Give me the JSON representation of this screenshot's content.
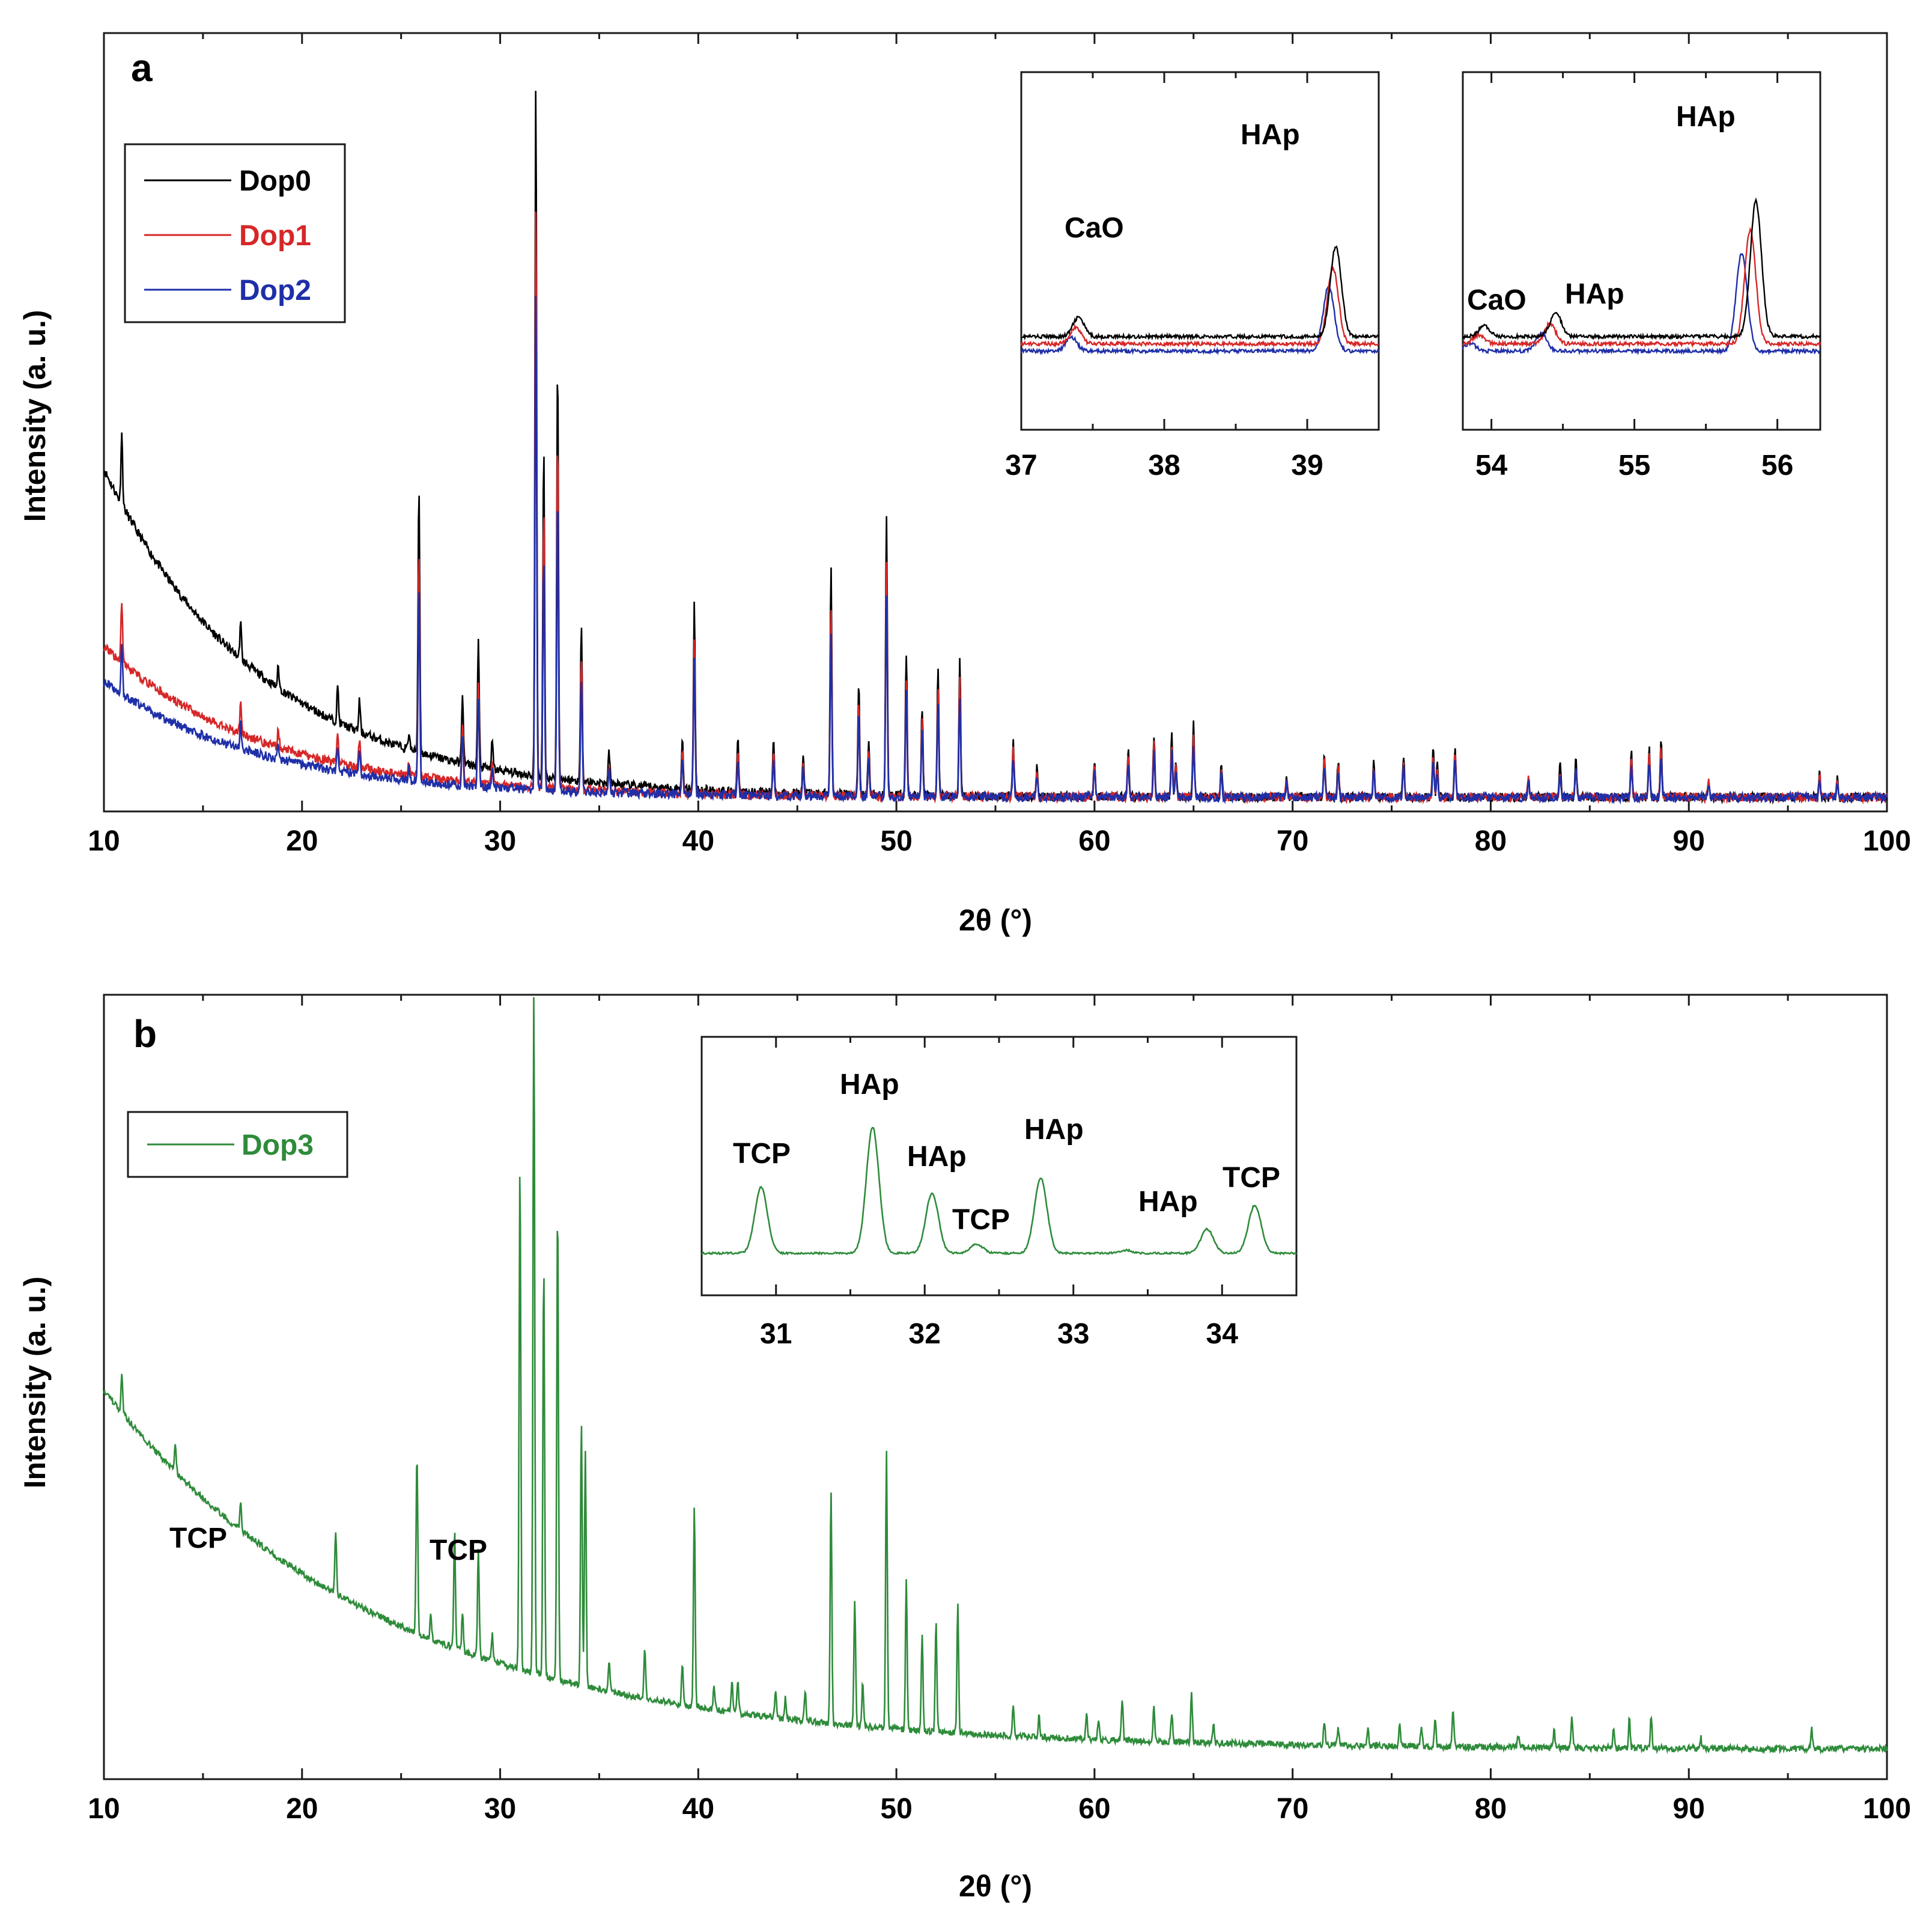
{
  "chart_data": [
    {
      "panel": "a",
      "type": "line",
      "xlabel": "2θ (°)",
      "ylabel": "Intensity (a. u.)",
      "xlim": [
        10,
        100
      ],
      "xticks": [
        "10",
        "20",
        "30",
        "40",
        "50",
        "60",
        "70",
        "80",
        "90",
        "100"
      ],
      "grid": false,
      "legend_position": "top-left",
      "series": [
        {
          "name": "Dop0",
          "color": "#000000",
          "base": [
            185,
            0
          ],
          "scale": 1.0
        },
        {
          "name": "Dop1",
          "color": "#d62728",
          "base": [
            85,
            0
          ],
          "scale": 0.84
        },
        {
          "name": "Dop2",
          "color": "#1f2fa8",
          "base": [
            65,
            0
          ],
          "scale": 0.72
        }
      ],
      "peaks": [
        [
          10.9,
          40
        ],
        [
          16.9,
          20
        ],
        [
          18.8,
          12
        ],
        [
          21.8,
          20
        ],
        [
          22.9,
          18
        ],
        [
          25.4,
          10
        ],
        [
          25.9,
          150
        ],
        [
          28.1,
          40
        ],
        [
          28.9,
          70
        ],
        [
          29.6,
          15
        ],
        [
          31.8,
          390
        ],
        [
          32.2,
          185
        ],
        [
          32.9,
          235
        ],
        [
          34.1,
          90
        ],
        [
          35.5,
          18
        ],
        [
          39.2,
          28
        ],
        [
          39.8,
          105
        ],
        [
          42.0,
          28
        ],
        [
          43.8,
          30
        ],
        [
          45.3,
          20
        ],
        [
          46.7,
          128
        ],
        [
          48.1,
          63
        ],
        [
          48.6,
          30
        ],
        [
          49.5,
          158
        ],
        [
          50.5,
          80
        ],
        [
          51.3,
          50
        ],
        [
          52.1,
          70
        ],
        [
          53.2,
          78
        ],
        [
          55.9,
          32
        ],
        [
          57.1,
          18
        ],
        [
          60.0,
          22
        ],
        [
          61.7,
          27
        ],
        [
          63.0,
          35
        ],
        [
          63.9,
          35
        ],
        [
          64.1,
          20
        ],
        [
          65.0,
          42
        ],
        [
          66.4,
          18
        ],
        [
          69.7,
          12
        ],
        [
          71.6,
          25
        ],
        [
          72.3,
          20
        ],
        [
          74.1,
          20
        ],
        [
          75.6,
          23
        ],
        [
          77.1,
          28
        ],
        [
          77.3,
          20
        ],
        [
          78.2,
          30
        ],
        [
          81.9,
          12
        ],
        [
          83.5,
          18
        ],
        [
          84.3,
          22
        ],
        [
          87.1,
          25
        ],
        [
          88.0,
          28
        ],
        [
          88.6,
          33
        ],
        [
          91.0,
          10
        ],
        [
          96.6,
          15
        ],
        [
          97.5,
          12
        ]
      ],
      "insets": [
        {
          "xlim": [
            37,
            39.5
          ],
          "xticks": [
            "37",
            "38",
            "39"
          ],
          "annotations": [
            {
              "text": "CaO",
              "x": 37.4
            },
            {
              "text": "HAp",
              "x": 39.0
            }
          ],
          "peaks": [
            [
              37.4,
              32
            ],
            [
              39.2,
              150
            ]
          ],
          "shift": [
            0,
            -0.02,
            -0.05
          ]
        },
        {
          "xlim": [
            53.8,
            56.3
          ],
          "xticks": [
            "54",
            "55",
            "56"
          ],
          "annotations": [
            {
              "text": "CaO",
              "x": 54.0
            },
            {
              "text": "HAp",
              "x": 54.7
            },
            {
              "text": "HAp",
              "x": 55.6
            }
          ],
          "peaks": [
            [
              53.95,
              18
            ],
            [
              54.45,
              40
            ],
            [
              55.85,
              225
            ]
          ],
          "shift": [
            0,
            -0.04,
            -0.1
          ]
        }
      ]
    },
    {
      "panel": "b",
      "type": "line",
      "xlabel": "2θ (°)",
      "ylabel": "Intensity (a. u.)",
      "xlim": [
        10,
        100
      ],
      "xticks": [
        "10",
        "20",
        "30",
        "40",
        "50",
        "60",
        "70",
        "80",
        "90",
        "100"
      ],
      "grid": false,
      "legend_position": "top-left",
      "series": [
        {
          "name": "Dop3",
          "color": "#2e8b3a",
          "base": [
            340,
            0
          ],
          "scale": 1.0
        }
      ],
      "annotations": [
        {
          "text": "TCP",
          "x": 15
        },
        {
          "text": "TCP",
          "x": 27.5
        }
      ],
      "peaks": [
        [
          10.9,
          35
        ],
        [
          13.6,
          25
        ],
        [
          16.9,
          25
        ],
        [
          21.7,
          60
        ],
        [
          25.8,
          170
        ],
        [
          26.5,
          25
        ],
        [
          27.7,
          110
        ],
        [
          28.1,
          35
        ],
        [
          28.9,
          100
        ],
        [
          29.6,
          25
        ],
        [
          31.0,
          480
        ],
        [
          31.7,
          650
        ],
        [
          32.2,
          390
        ],
        [
          32.9,
          450
        ],
        [
          34.1,
          250
        ],
        [
          34.3,
          220
        ],
        [
          35.5,
          30
        ],
        [
          37.3,
          45
        ],
        [
          39.2,
          40
        ],
        [
          39.8,
          190
        ],
        [
          40.8,
          22
        ],
        [
          41.7,
          30
        ],
        [
          42.0,
          30
        ],
        [
          43.9,
          25
        ],
        [
          44.4,
          20
        ],
        [
          45.4,
          30
        ],
        [
          46.7,
          220
        ],
        [
          47.9,
          120
        ],
        [
          48.3,
          40
        ],
        [
          49.5,
          260
        ],
        [
          50.5,
          140
        ],
        [
          51.3,
          90
        ],
        [
          52.0,
          105
        ],
        [
          53.1,
          120
        ],
        [
          55.9,
          30
        ],
        [
          57.2,
          20
        ],
        [
          59.6,
          25
        ],
        [
          60.2,
          20
        ],
        [
          61.4,
          40
        ],
        [
          63.0,
          35
        ],
        [
          63.9,
          28
        ],
        [
          64.9,
          45
        ],
        [
          66.0,
          18
        ],
        [
          71.6,
          22
        ],
        [
          72.3,
          18
        ],
        [
          73.8,
          16
        ],
        [
          75.4,
          23
        ],
        [
          76.5,
          20
        ],
        [
          77.2,
          25
        ],
        [
          78.1,
          35
        ],
        [
          81.4,
          12
        ],
        [
          83.2,
          16
        ],
        [
          84.1,
          28
        ],
        [
          86.2,
          18
        ],
        [
          87.0,
          28
        ],
        [
          88.1,
          30
        ],
        [
          90.6,
          10
        ],
        [
          96.2,
          20
        ]
      ],
      "insets": [
        {
          "xlim": [
            30.5,
            34.5
          ],
          "xticks": [
            "31",
            "32",
            "33",
            "34"
          ],
          "annotations": [
            {
              "text": "TCP",
              "x": 30.9
            },
            {
              "text": "HAp",
              "x": 31.7
            },
            {
              "text": "HAp",
              "x": 32.1
            },
            {
              "text": "TCP",
              "x": 32.4
            },
            {
              "text": "HAp",
              "x": 32.8
            },
            {
              "text": "HAp",
              "x": 33.7
            },
            {
              "text": "TCP",
              "x": 34.2
            }
          ],
          "peaks": [
            [
              30.9,
              110
            ],
            [
              31.65,
              210
            ],
            [
              32.05,
              100
            ],
            [
              32.35,
              15
            ],
            [
              32.78,
              125
            ],
            [
              33.35,
              5
            ],
            [
              33.9,
              40
            ],
            [
              34.22,
              80
            ]
          ]
        }
      ]
    }
  ]
}
